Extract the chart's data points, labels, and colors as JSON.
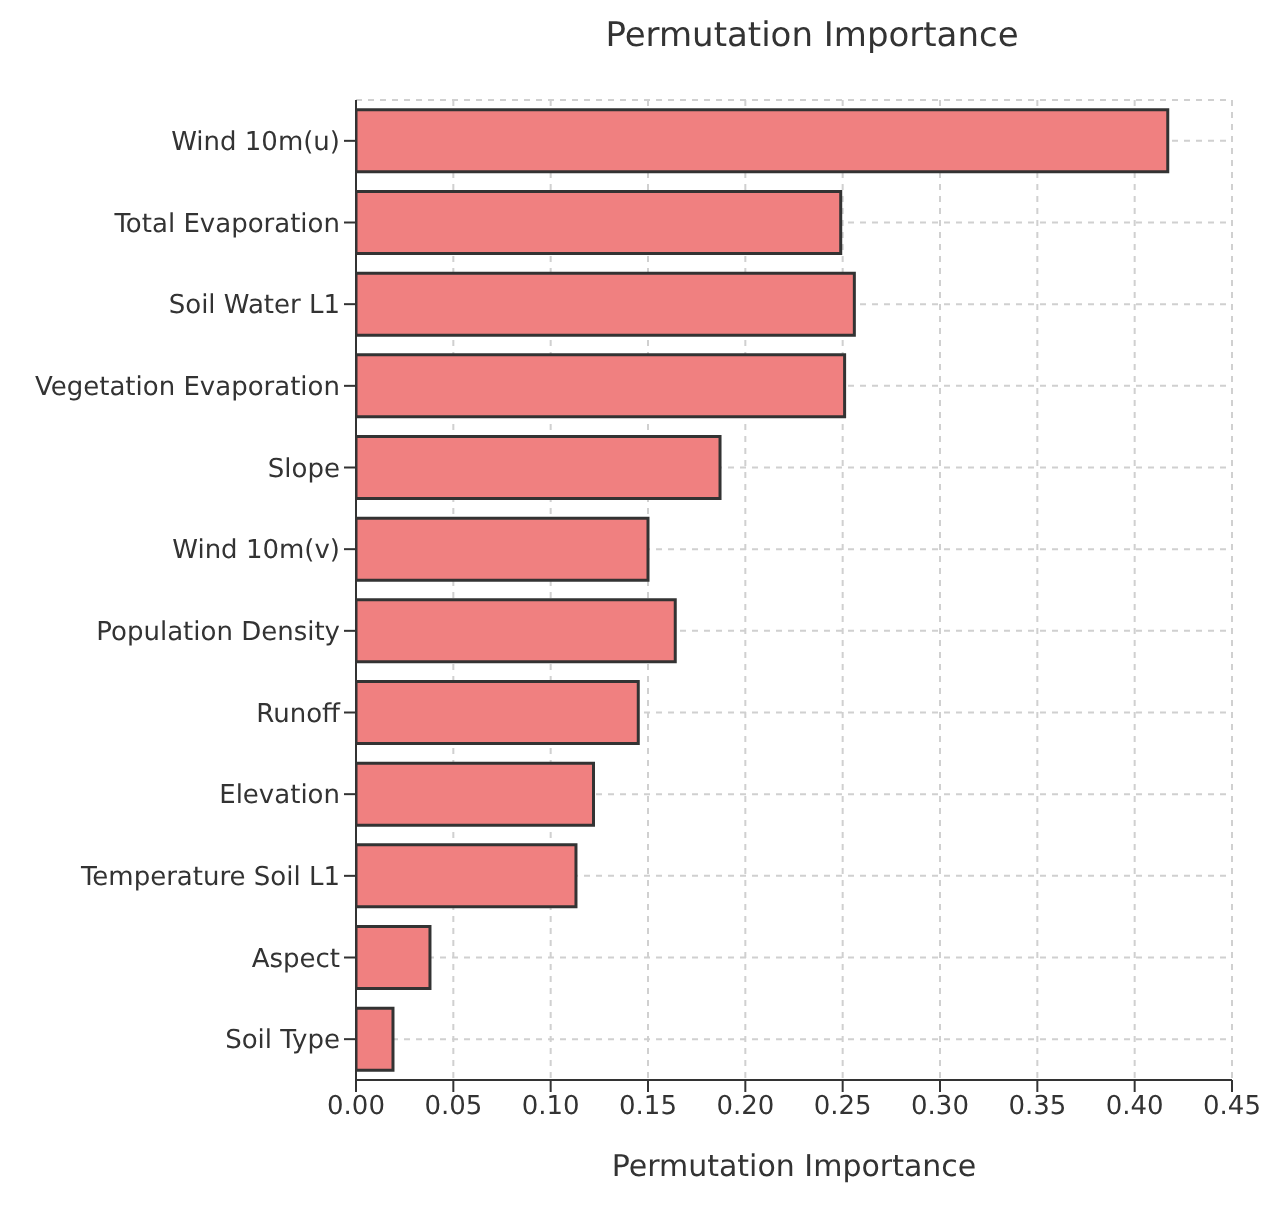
{
  "chart_data": {
    "type": "bar",
    "orientation": "horizontal",
    "title": "Permutation Importance",
    "xlabel": "Permutation Importance",
    "categories": [
      "Wind 10m(u)",
      "Total Evaporation",
      "Soil Water L1",
      "Vegetation Evaporation",
      "Slope",
      "Wind 10m(v)",
      "Population Density",
      "Runoff",
      "Elevation",
      "Temperature Soil L1",
      "Aspect",
      "Soil Type"
    ],
    "values": [
      0.417,
      0.249,
      0.256,
      0.251,
      0.187,
      0.15,
      0.164,
      0.145,
      0.122,
      0.113,
      0.038,
      0.019
    ],
    "color": "#f08080",
    "xlim": [
      0,
      0.45
    ],
    "xticks": [
      {
        "value": 0,
        "label": "0.00"
      },
      {
        "value": 0.05,
        "label": "0.05"
      },
      {
        "value": 0.1,
        "label": "0.10"
      },
      {
        "value": 0.15,
        "label": "0.15"
      },
      {
        "value": 0.2,
        "label": "0.20"
      },
      {
        "value": 0.25,
        "label": "0.25"
      },
      {
        "value": 0.3,
        "label": "0.30"
      },
      {
        "value": 0.35,
        "label": "0.35"
      },
      {
        "value": 0.4,
        "label": "0.40"
      },
      {
        "value": 0.45,
        "label": "0.45"
      }
    ],
    "grid": true
  }
}
